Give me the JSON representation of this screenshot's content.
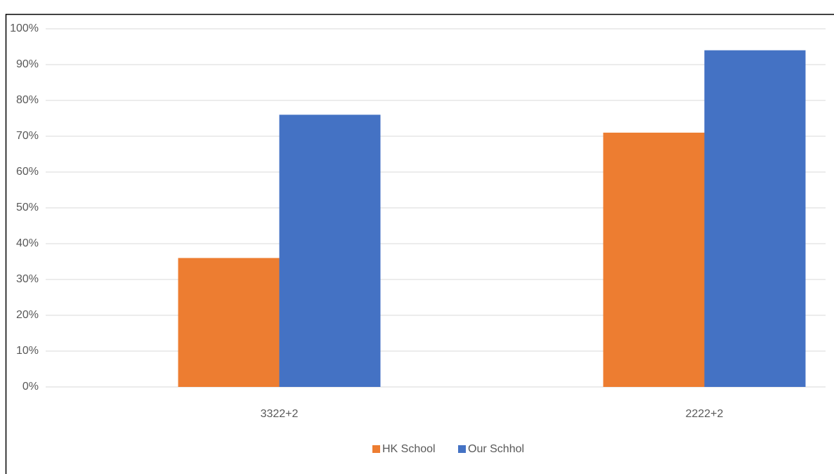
{
  "chart_data": {
    "type": "bar",
    "categories": [
      "3322+2",
      "2222+2"
    ],
    "series": [
      {
        "name": "HK School",
        "color": "#ed7d31",
        "values": [
          36,
          71
        ]
      },
      {
        "name": "Our Schhol",
        "color": "#4472c4",
        "values": [
          76,
          94
        ]
      }
    ],
    "ylim": [
      0,
      100
    ],
    "yticks": [
      {
        "value": 0,
        "label": "0%"
      },
      {
        "value": 10,
        "label": "10%"
      },
      {
        "value": 20,
        "label": "20%"
      },
      {
        "value": 30,
        "label": "30%"
      },
      {
        "value": 40,
        "label": "40%"
      },
      {
        "value": 50,
        "label": "50%"
      },
      {
        "value": 60,
        "label": "60%"
      },
      {
        "value": 70,
        "label": "70%"
      },
      {
        "value": 80,
        "label": "80%"
      },
      {
        "value": 90,
        "label": "90%"
      },
      {
        "value": 100,
        "label": "100%"
      }
    ],
    "grid": true,
    "legend": "bottom"
  }
}
